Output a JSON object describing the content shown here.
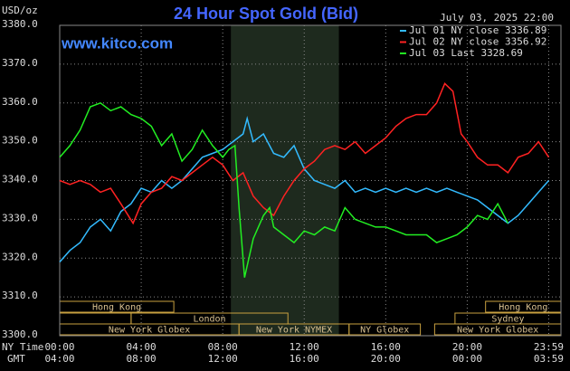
{
  "chart_data": {
    "type": "line",
    "title": "24 Hour Spot Gold (Bid)",
    "unit_label": "USD/oz",
    "date_label": "July 03, 2025 22:00",
    "website": "www.kitco.com",
    "x_label": "NY Time",
    "x2_label": "GMT",
    "xlim": [
      0,
      24.6
    ],
    "xticks": [
      {
        "value": 0,
        "label": "00:00"
      },
      {
        "value": 4,
        "label": "04:00"
      },
      {
        "value": 8,
        "label": "08:00"
      },
      {
        "value": 12,
        "label": "12:00"
      },
      {
        "value": 16,
        "label": "16:00"
      },
      {
        "value": 20,
        "label": "20:00"
      },
      {
        "value": 24,
        "label": "23:59"
      }
    ],
    "x2ticks": [
      {
        "value": 0,
        "label": "04:00"
      },
      {
        "value": 4,
        "label": "08:00"
      },
      {
        "value": 8,
        "label": "12:00"
      },
      {
        "value": 12,
        "label": "16:00"
      },
      {
        "value": 16,
        "label": "20:00"
      },
      {
        "value": 20,
        "label": "00:00"
      },
      {
        "value": 24,
        "label": "03:59"
      }
    ],
    "ylim": [
      3300,
      3380
    ],
    "yticks": [
      {
        "value": 3300,
        "label": "3300.0"
      },
      {
        "value": 3310,
        "label": "3310.0"
      },
      {
        "value": 3320,
        "label": "3320.0"
      },
      {
        "value": 3330,
        "label": "3330.0"
      },
      {
        "value": 3340,
        "label": "3340.0"
      },
      {
        "value": 3350,
        "label": "3350.0"
      },
      {
        "value": 3360,
        "label": "3360.0"
      },
      {
        "value": 3370,
        "label": "3370.0"
      },
      {
        "value": 3380,
        "label": "3380.0"
      }
    ],
    "grid": true,
    "shaded_range": [
      8.4,
      13.7
    ],
    "sessions": [
      {
        "label": "Hong Kong",
        "start": 0,
        "end": 5.6,
        "row": 0
      },
      {
        "label": "Hong Kong",
        "start": 20.9,
        "end": 24.6,
        "row": 0
      },
      {
        "label": "London",
        "start": 3.5,
        "end": 11.2,
        "row": 1
      },
      {
        "label": "Sydney",
        "start": 19.4,
        "end": 24.6,
        "row": 1
      },
      {
        "label": "New York Globex",
        "start": 0,
        "end": 8.8,
        "row": 2
      },
      {
        "label": "New York NYMEX",
        "start": 8.8,
        "end": 14.2,
        "row": 2
      },
      {
        "label": "NY Globex",
        "start": 14.2,
        "end": 17.7,
        "row": 2
      },
      {
        "label": "New York Globex",
        "start": 18.4,
        "end": 24.6,
        "row": 2
      }
    ],
    "series": [
      {
        "name": "Jul 01 NY close 3336.89",
        "color": "#33bbff",
        "x": [
          0,
          0.5,
          1,
          1.5,
          2,
          2.5,
          3,
          3.5,
          4,
          4.5,
          5,
          5.5,
          6,
          6.5,
          7,
          7.5,
          8,
          8.5,
          9,
          9.2,
          9.5,
          10,
          10.5,
          11,
          11.5,
          12,
          12.5,
          13,
          13.5,
          14,
          14.5,
          15,
          15.5,
          16,
          16.5,
          17,
          17.5,
          18,
          18.5,
          19,
          19.5,
          20,
          20.5,
          21,
          21.5,
          22,
          22.5,
          23,
          23.5,
          24
        ],
        "values": [
          3319,
          3322,
          3324,
          3328,
          3330,
          3327,
          3332,
          3334,
          3338,
          3337,
          3340,
          3338,
          3340,
          3343,
          3346,
          3347,
          3348,
          3350,
          3352,
          3356,
          3350,
          3352,
          3347,
          3346,
          3349,
          3343,
          3340,
          3339,
          3338,
          3340,
          3337,
          3338,
          3337,
          3338,
          3337,
          3338,
          3337,
          3338,
          3337,
          3338,
          3337,
          3336,
          3335,
          3333,
          3331,
          3329,
          3331,
          3334,
          3337,
          3340
        ]
      },
      {
        "name": "Jul 02 NY close 3356.92",
        "color": "#ff2222",
        "x": [
          0,
          0.5,
          1,
          1.5,
          2,
          2.5,
          3,
          3.6,
          4,
          4.5,
          5,
          5.5,
          6,
          6.5,
          7,
          7.5,
          8,
          8.5,
          9,
          9.5,
          10,
          10.5,
          11,
          11.5,
          12,
          12.5,
          13,
          13.5,
          14,
          14.5,
          15,
          15.5,
          16,
          16.5,
          17,
          17.5,
          18,
          18.5,
          18.9,
          19.3,
          19.7,
          20,
          20.5,
          21,
          21.5,
          22,
          22.5,
          23,
          23.5,
          24
        ],
        "values": [
          3340,
          3339,
          3340,
          3339,
          3337,
          3338,
          3334,
          3329,
          3334,
          3337,
          3338,
          3341,
          3340,
          3342,
          3344,
          3346,
          3344,
          3340,
          3342,
          3336,
          3333,
          3331,
          3336,
          3340,
          3343,
          3345,
          3348,
          3349,
          3348,
          3350,
          3347,
          3349,
          3351,
          3354,
          3356,
          3357,
          3357,
          3360,
          3365,
          3363,
          3352,
          3350,
          3346,
          3344,
          3344,
          3342,
          3346,
          3347,
          3350,
          3346
        ]
      },
      {
        "name": "Jul 03 Last 3328.69",
        "color": "#22ee22",
        "x": [
          0,
          0.5,
          1,
          1.5,
          2,
          2.5,
          3,
          3.5,
          4,
          4.5,
          5,
          5.5,
          6,
          6.5,
          7,
          7.5,
          8,
          8.3,
          8.6,
          8.8,
          9.07,
          9.5,
          10,
          10.3,
          10.5,
          11,
          11.5,
          12,
          12.5,
          13,
          13.5,
          14,
          14.5,
          15,
          15.5,
          16,
          16.5,
          17,
          17.5,
          18,
          18.5,
          19,
          19.5,
          20,
          20.5,
          21,
          21.5,
          22
        ],
        "values": [
          3346,
          3349,
          3353,
          3359,
          3360,
          3358,
          3359,
          3357,
          3356,
          3354,
          3349,
          3352,
          3345,
          3348,
          3353,
          3349,
          3346,
          3348,
          3349,
          3333,
          3315,
          3325,
          3331,
          3333,
          3328,
          3326,
          3324,
          3327,
          3326,
          3328,
          3327,
          3333,
          3330,
          3329,
          3328,
          3328,
          3327,
          3326,
          3326,
          3326,
          3324,
          3325,
          3326,
          3328,
          3331,
          3330,
          3334,
          3329
        ]
      }
    ]
  }
}
